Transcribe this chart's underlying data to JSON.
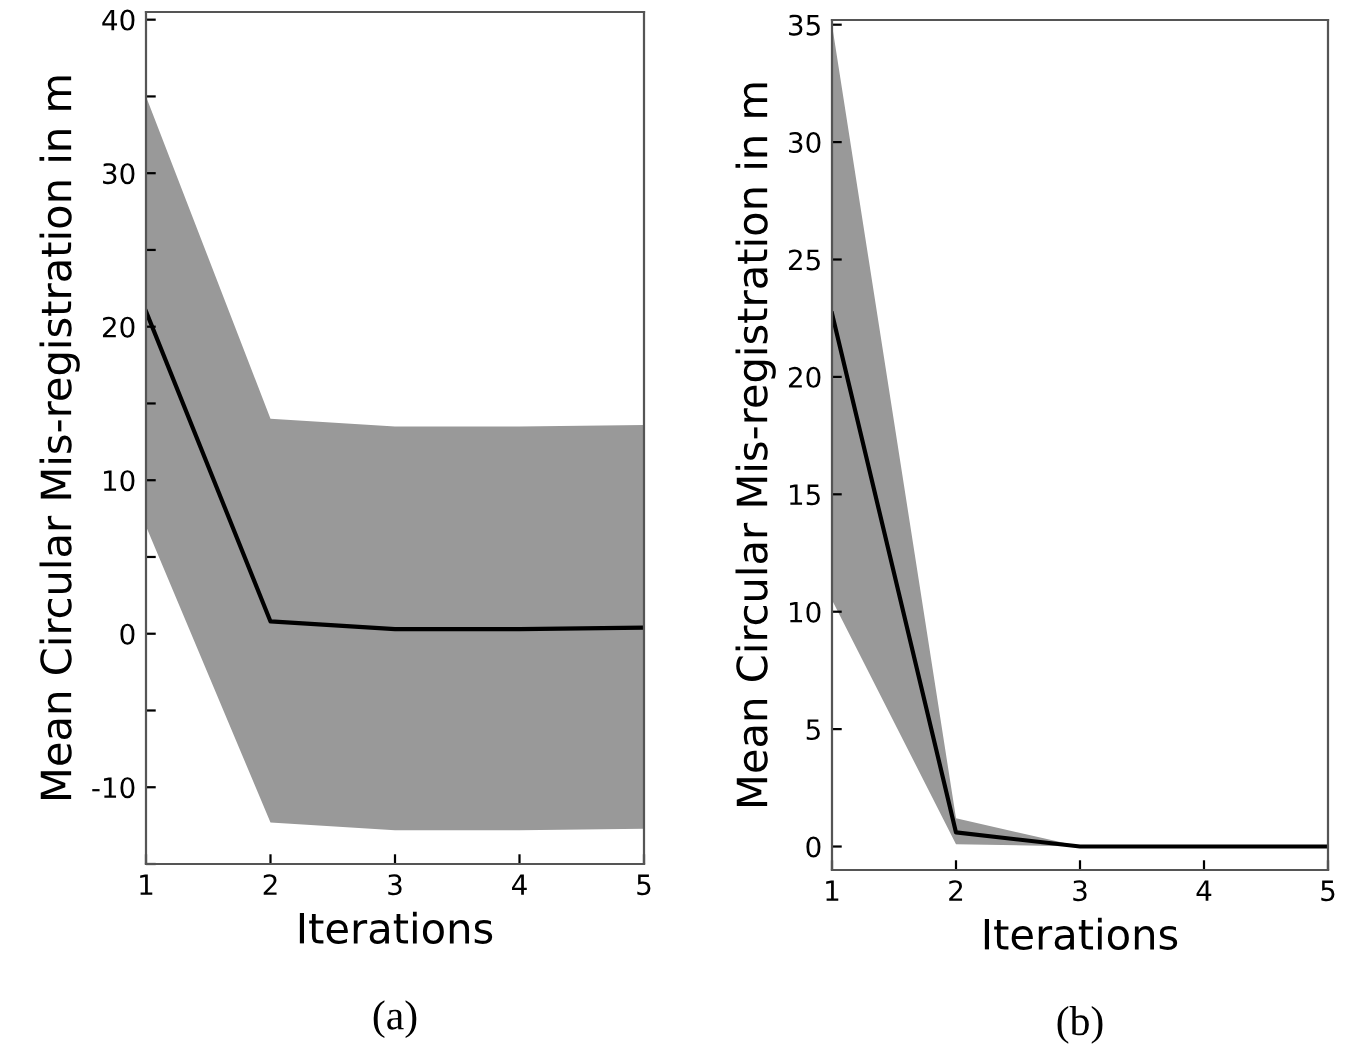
{
  "chart_data": [
    {
      "type": "line",
      "xlabel": "Iterations",
      "ylabel": "Mean Circular Mis-registration in m",
      "annotations": [
        "(a)"
      ],
      "x": [
        1,
        2,
        3,
        4,
        5
      ],
      "xlim": [
        1,
        5
      ],
      "xticks": [
        1,
        2,
        3,
        4,
        5
      ],
      "ylim": [
        -15,
        40.5
      ],
      "yticks": [
        {
          "value": -15,
          "label": null
        },
        -10,
        {
          "value": -5,
          "label": null
        },
        0,
        {
          "value": 5,
          "label": null
        },
        10,
        {
          "value": 15,
          "label": null
        },
        20,
        {
          "value": 25,
          "label": null
        },
        30,
        {
          "value": 35,
          "label": null
        },
        40
      ],
      "grid": false,
      "legend": false,
      "marker": "none",
      "line_style": "solid",
      "series": [
        {
          "color": "#000000",
          "values": [
            21,
            0.8,
            0.3,
            0.3,
            0.4
          ],
          "lower": [
            7,
            -12.3,
            -12.8,
            -12.8,
            -12.7
          ],
          "upper": [
            35,
            14,
            13.5,
            13.5,
            13.6
          ]
        }
      ]
    },
    {
      "type": "line",
      "xlabel": "Iterations",
      "ylabel": "Mean Circular Mis-registration in m",
      "annotations": [
        "(b)"
      ],
      "x": [
        1,
        2,
        3,
        4,
        5
      ],
      "xlim": [
        1,
        5
      ],
      "xticks": [
        1,
        2,
        3,
        4,
        5
      ],
      "ylim": [
        -1,
        35.2
      ],
      "yticks": [
        0,
        5,
        10,
        15,
        20,
        25,
        30,
        35
      ],
      "grid": false,
      "legend": false,
      "marker": "none",
      "line_style": "solid",
      "series": [
        {
          "color": "#000000",
          "values": [
            22.7,
            0.6,
            0,
            0,
            0
          ],
          "lower": [
            10.5,
            0.1,
            0,
            0,
            0
          ],
          "upper": [
            35,
            1.2,
            0,
            0,
            0
          ]
        }
      ]
    }
  ]
}
